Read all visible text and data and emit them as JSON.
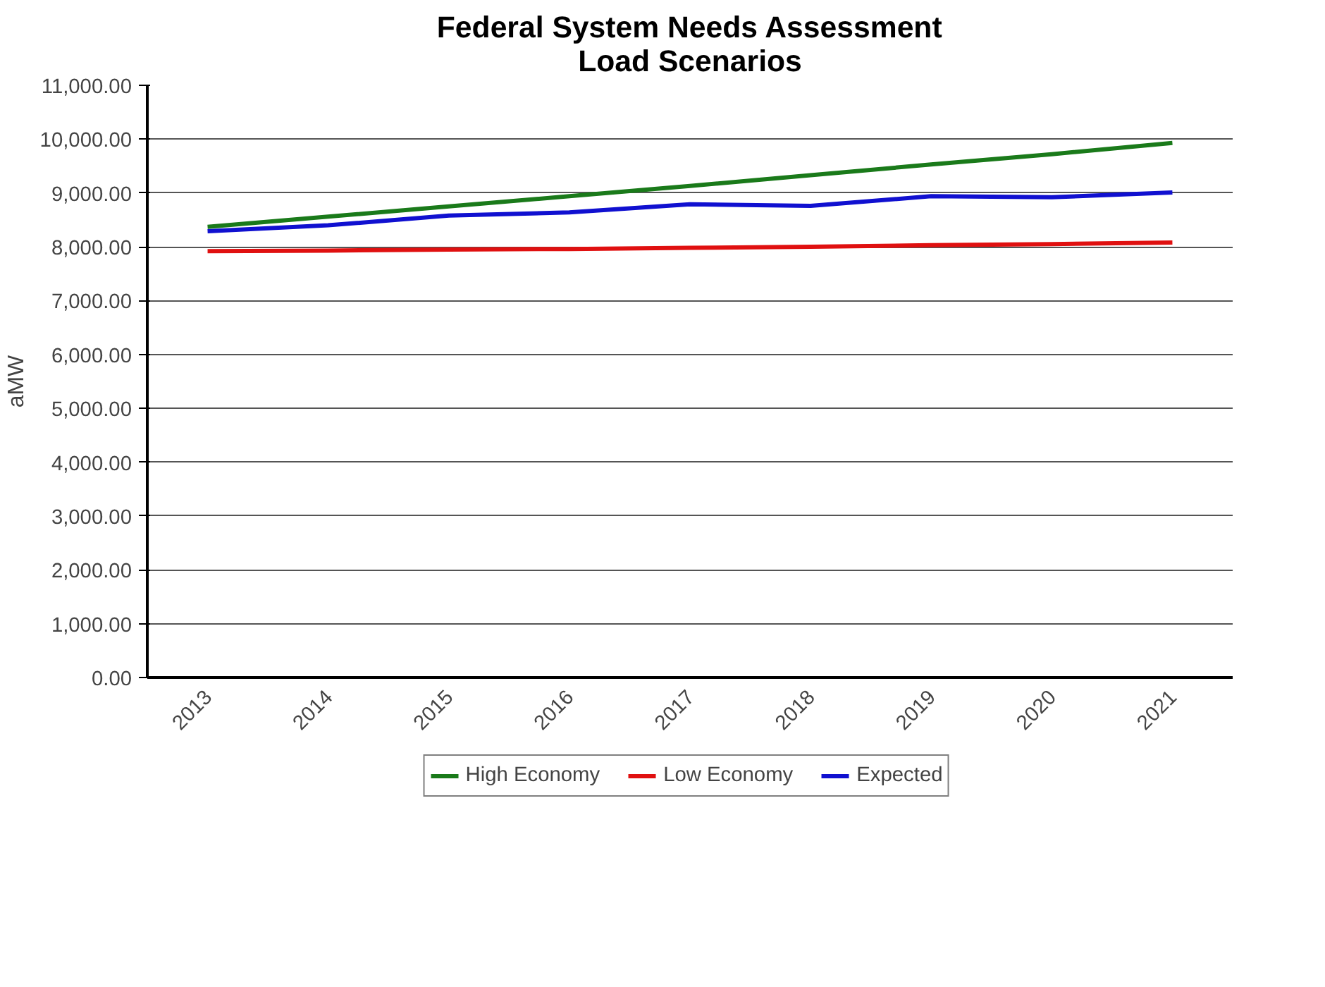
{
  "chart_data": {
    "type": "line",
    "title": "Federal System Needs Assessment\nLoad Scenarios",
    "ylabel": "aMW",
    "categories": [
      "2013",
      "2014",
      "2015",
      "2016",
      "2017",
      "2018",
      "2019",
      "2020",
      "2021"
    ],
    "series": [
      {
        "name": "High Economy",
        "color": "#1a7a1a",
        "values": [
          8370,
          8560,
          8750,
          8940,
          9130,
          9330,
          9530,
          9720,
          9930
        ]
      },
      {
        "name": "Low Economy",
        "color": "#e01010",
        "values": [
          7920,
          7930,
          7950,
          7960,
          7980,
          8000,
          8030,
          8050,
          8080
        ]
      },
      {
        "name": "Expected",
        "color": "#1010d0",
        "values": [
          8290,
          8400,
          8580,
          8640,
          8790,
          8760,
          8940,
          8920,
          9010
        ]
      }
    ],
    "ylim": [
      0,
      11000
    ],
    "yticks": [
      {
        "value": 0,
        "label": "0.00"
      },
      {
        "value": 1000,
        "label": "1,000.00"
      },
      {
        "value": 2000,
        "label": "2,000.00"
      },
      {
        "value": 3000,
        "label": "3,000.00"
      },
      {
        "value": 4000,
        "label": "4,000.00"
      },
      {
        "value": 5000,
        "label": "5,000.00"
      },
      {
        "value": 6000,
        "label": "6,000.00"
      },
      {
        "value": 7000,
        "label": "7,000.00"
      },
      {
        "value": 8000,
        "label": "8,000.00"
      },
      {
        "value": 9000,
        "label": "9,000.00"
      },
      {
        "value": 10000,
        "label": "10,000.00"
      },
      {
        "value": 11000,
        "label": "11,000.00"
      }
    ],
    "grid": "y",
    "legend": "bottom",
    "marker": "none",
    "line_style": "solid"
  }
}
